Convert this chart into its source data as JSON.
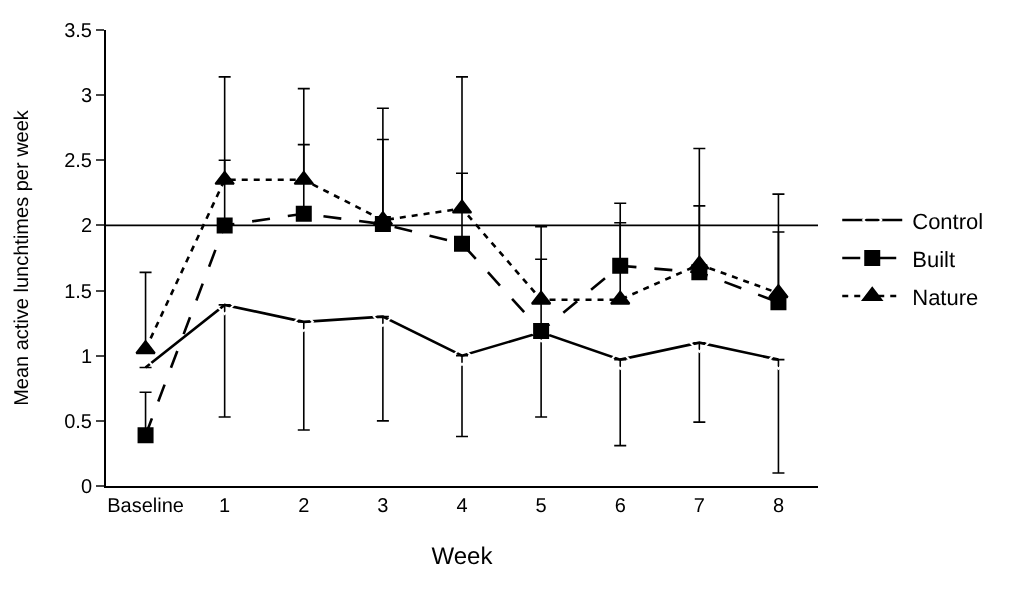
{
  "chart_data": {
    "type": "line",
    "xlabel": "Week",
    "ylabel": "Mean active lunchtimes per week",
    "categories": [
      "Baseline",
      "1",
      "2",
      "3",
      "4",
      "5",
      "6",
      "7",
      "8"
    ],
    "series": [
      {
        "name": "Control",
        "color": "#000000",
        "marker": "diamond-open",
        "line_style": "solid",
        "values": [
          0.91,
          1.39,
          1.26,
          1.3,
          1.0,
          1.18,
          0.97,
          1.1,
          0.97
        ],
        "errors": [
          null,
          [
            0.53,
            1.39
          ],
          [
            0.43,
            1.26
          ],
          [
            0.5,
            1.3
          ],
          [
            0.38,
            1.0
          ],
          [
            0.53,
            1.18
          ],
          [
            0.31,
            0.97
          ],
          [
            0.49,
            1.1
          ],
          [
            0.1,
            0.97
          ]
        ]
      },
      {
        "name": "Built",
        "color": "#000000",
        "marker": "square",
        "line_style": "dashed",
        "values": [
          0.39,
          2.0,
          2.09,
          2.01,
          1.86,
          1.19,
          1.69,
          1.64,
          1.41
        ],
        "errors": [
          [
            0.39,
            0.72
          ],
          [
            2.0,
            2.5
          ],
          [
            2.09,
            2.62
          ],
          [
            2.01,
            2.66
          ],
          [
            1.86,
            2.4
          ],
          [
            1.19,
            1.74
          ],
          [
            1.69,
            2.17
          ],
          [
            1.64,
            2.15
          ],
          [
            1.41,
            1.95
          ]
        ]
      },
      {
        "name": "Nature",
        "color": "#000000",
        "marker": "triangle",
        "line_style": "dotted",
        "values": [
          1.05,
          2.35,
          2.35,
          2.04,
          2.13,
          1.43,
          1.43,
          1.7,
          1.48
        ],
        "errors": [
          [
            1.05,
            1.64
          ],
          [
            2.35,
            3.14
          ],
          [
            2.35,
            3.05
          ],
          [
            2.04,
            2.9
          ],
          [
            2.13,
            3.14
          ],
          [
            1.43,
            1.99
          ],
          [
            1.43,
            2.02
          ],
          [
            1.7,
            2.59
          ],
          [
            1.48,
            2.24
          ]
        ]
      }
    ],
    "ylim": [
      0,
      3.5
    ],
    "yticks": [
      0,
      0.5,
      1,
      1.5,
      2,
      2.5,
      3,
      3.5
    ],
    "ref_lines": [
      {
        "axis": "y",
        "value": 2,
        "color": "#000000"
      }
    ],
    "legend": "right"
  }
}
